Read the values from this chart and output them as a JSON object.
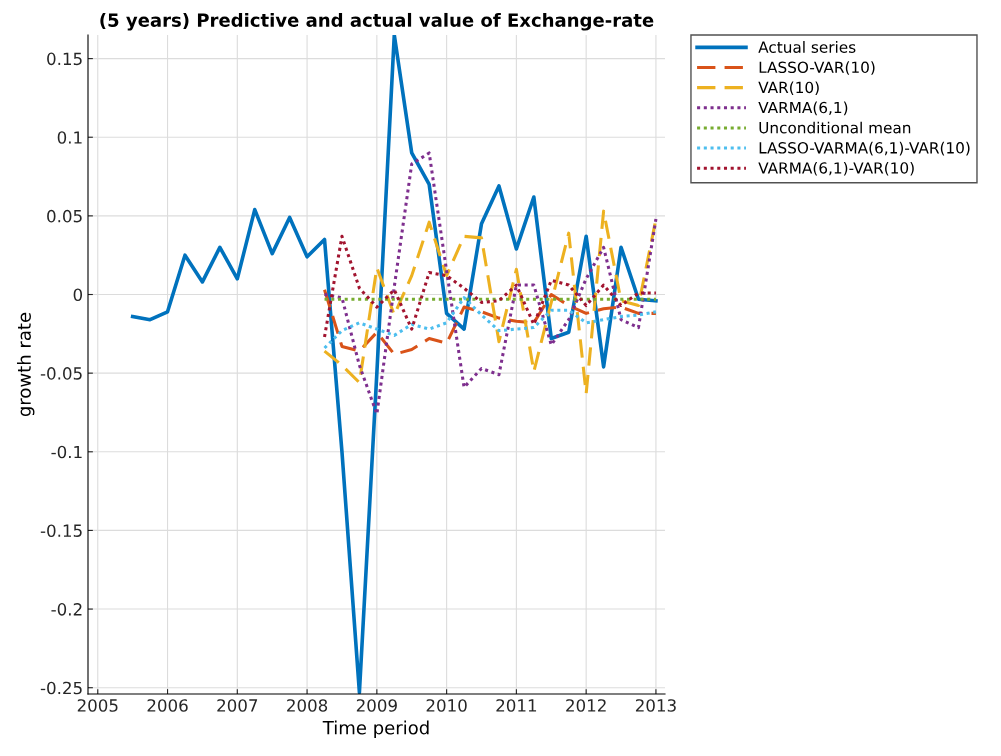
{
  "chart_data": {
    "type": "line",
    "title": "(5 years) Predictive and actual value of Exchange-rate",
    "xlabel": "Time period",
    "ylabel": "growth rate",
    "xlim": [
      2004.86,
      2013.13
    ],
    "xticks": [
      2005,
      2006,
      2007,
      2008,
      2009,
      2010,
      2011,
      2012,
      2013
    ],
    "ylim": [
      -0.254,
      0.165
    ],
    "yticks": [
      -0.25,
      -0.2,
      -0.15,
      -0.1,
      -0.05,
      0,
      0.05,
      0.1,
      0.15
    ],
    "grid": true,
    "legend": "top right",
    "series": [
      {
        "name": "Actual series",
        "color": "#0072bd",
        "line_style": "solid",
        "x": [
          2005.5,
          2005.75,
          2006,
          2006.25,
          2006.5,
          2006.75,
          2007,
          2007.25,
          2007.5,
          2007.75,
          2008,
          2008.25,
          2008.5,
          2008.75,
          2009,
          2009.25,
          2009.5,
          2009.75,
          2010,
          2010.25,
          2010.5,
          2010.75,
          2011,
          2011.25,
          2011.5,
          2011.75,
          2012,
          2012.25,
          2012.5,
          2012.75,
          2013
        ],
        "values": [
          -0.014,
          -0.016,
          -0.011,
          0.025,
          0.008,
          0.03,
          0.01,
          0.054,
          0.026,
          0.049,
          0.024,
          0.035,
          -0.1,
          -0.253,
          -0.05,
          0.165,
          0.09,
          0.07,
          -0.012,
          -0.022,
          0.045,
          0.069,
          0.029,
          0.062,
          -0.028,
          -0.024,
          0.037,
          -0.046,
          0.03,
          -0.003,
          -0.004
        ]
      },
      {
        "name": "LASSO-VAR(10)",
        "color": "#d95319",
        "line_style": "dashed",
        "values": [
          0.003,
          -0.033,
          -0.036,
          -0.024,
          -0.038,
          -0.035,
          -0.028,
          -0.031,
          -0.008,
          -0.011,
          -0.015,
          -0.017,
          -0.018,
          0,
          -0.007,
          -0.012,
          -0.009,
          -0.008,
          -0.012,
          -0.012
        ]
      },
      {
        "name": "VAR(10)",
        "color": "#edb120",
        "line_style": "dashed",
        "values": [
          -0.036,
          -0.045,
          -0.056,
          0.017,
          -0.013,
          0.012,
          0.046,
          0.012,
          0.037,
          0.036,
          -0.03,
          0.016,
          -0.049,
          -0.005,
          0.039,
          -0.063,
          0.053,
          -0.004,
          -0.007,
          0.048
        ]
      },
      {
        "name": "VARMA(6,1)",
        "color": "#7e2f8e",
        "line_style": "dotted",
        "values": [
          0,
          -0.002,
          -0.045,
          -0.076,
          0.005,
          0.083,
          0.09,
          0.015,
          -0.059,
          -0.047,
          -0.051,
          0.006,
          0.006,
          -0.032,
          -0.016,
          0.01,
          0.03,
          -0.016,
          -0.021,
          0.048
        ]
      },
      {
        "name": "Unconditional mean",
        "color": "#77ac30",
        "line_style": "dotted",
        "values": [
          -0.003,
          -0.003,
          -0.003,
          -0.003,
          -0.003,
          -0.003,
          -0.003,
          -0.003,
          -0.003,
          -0.003,
          -0.003,
          -0.003,
          -0.003,
          -0.003,
          -0.003,
          -0.003,
          -0.003,
          -0.003,
          -0.003,
          -0.003
        ]
      },
      {
        "name": "LASSO-VARMA(6,1)-VAR(10)",
        "color": "#4dbeee",
        "line_style": "dotted",
        "values": [
          -0.034,
          -0.023,
          -0.018,
          -0.022,
          -0.026,
          -0.019,
          -0.022,
          -0.018,
          -0.002,
          -0.013,
          -0.023,
          -0.022,
          -0.021,
          -0.01,
          -0.01,
          -0.018,
          -0.016,
          -0.014,
          -0.013,
          -0.011
        ]
      },
      {
        "name": "VARMA(6,1)-VAR(10)",
        "color": "#a2142f",
        "line_style": "dotted",
        "values": [
          -0.027,
          0.037,
          0.004,
          -0.008,
          0.003,
          -0.022,
          0.014,
          0.012,
          0.004,
          -0.005,
          -0.004,
          0.006,
          -0.019,
          0.009,
          0.006,
          -0.007,
          0.006,
          -0.007,
          0.001,
          0.001
        ]
      }
    ],
    "x": [
      2008.25,
      2008.5,
      2008.75,
      2009,
      2009.25,
      2009.5,
      2009.75,
      2010,
      2010.25,
      2010.5,
      2010.75,
      2011,
      2011.25,
      2011.5,
      2011.75,
      2012,
      2012.25,
      2012.5,
      2012.75,
      2013
    ]
  }
}
